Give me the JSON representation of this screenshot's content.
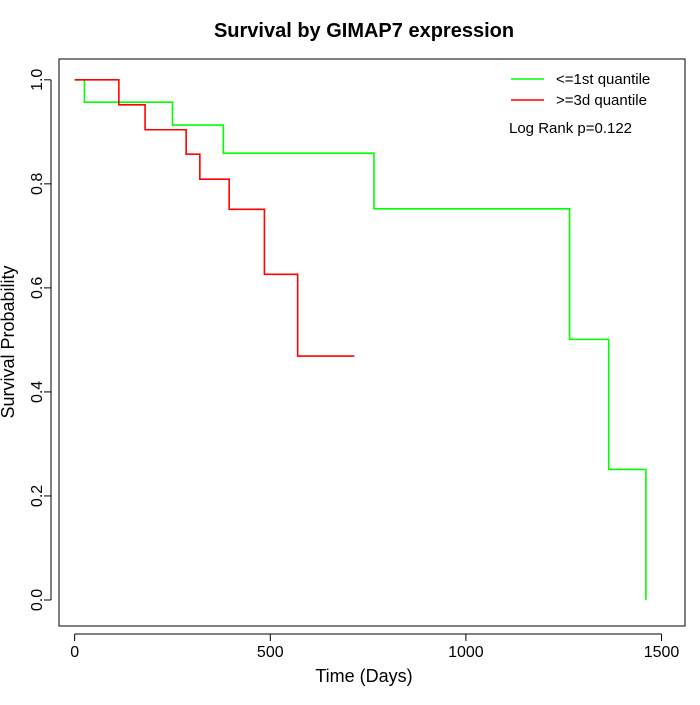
{
  "chart_data": {
    "type": "line",
    "subtype": "kaplan-meier step",
    "title": "Survival by GIMAP7 expression",
    "xlabel": "Time (Days)",
    "ylabel": "Survival Probability",
    "xlim": [
      -40,
      1560
    ],
    "ylim": [
      -0.05,
      1.04
    ],
    "x_ticks": [
      0,
      500,
      1000,
      1500
    ],
    "x_tick_labels": [
      "0",
      "500",
      "1000",
      "1500"
    ],
    "y_ticks": [
      0.0,
      0.2,
      0.4,
      0.6,
      0.8,
      1.0
    ],
    "y_tick_labels": [
      "0.0",
      "0.2",
      "0.4",
      "0.6",
      "0.8",
      "1.0"
    ],
    "grid": false,
    "legend_position": "top-right",
    "annotation": "Log Rank p=0.122",
    "series": [
      {
        "name": "<=1st quantile",
        "color": "#00ff00",
        "x": [
          0,
          25,
          250,
          380,
          765,
          1265,
          1365,
          1460
        ],
        "y": [
          1.0,
          0.957,
          0.913,
          0.859,
          0.752,
          0.501,
          0.251,
          0.0
        ]
      },
      {
        "name": ">=3d quantile",
        "color": "#ff0000",
        "x": [
          0,
          113,
          180,
          285,
          320,
          395,
          485,
          570,
          715
        ],
        "y": [
          1.0,
          0.952,
          0.904,
          0.857,
          0.809,
          0.751,
          0.626,
          0.469,
          0.469
        ]
      }
    ]
  }
}
